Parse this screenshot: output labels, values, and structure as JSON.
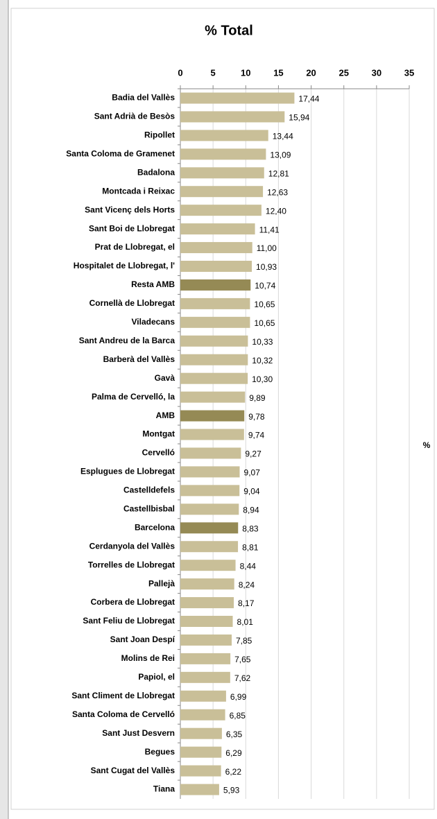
{
  "chart_data": {
    "type": "barh",
    "title": "% Total",
    "categories": [
      "Badia del Vallès",
      "Sant Adrià de Besòs",
      "Ripollet",
      "Santa Coloma de Gramenet",
      "Badalona",
      "Montcada i Reixac",
      "Sant Vicenç dels Horts",
      "Sant Boi de Llobregat",
      "Prat de Llobregat, el",
      "Hospitalet de Llobregat, l'",
      "Resta AMB",
      "Cornellà de Llobregat",
      "Viladecans",
      "Sant Andreu de la Barca",
      "Barberà del Vallès",
      "Gavà",
      "Palma de Cervelló, la",
      "AMB",
      "Montgat",
      "Cervelló",
      "Esplugues de Llobregat",
      "Castelldefels",
      "Castellbisbal",
      "Barcelona",
      "Cerdanyola del Vallès",
      "Torrelles de Llobregat",
      "Pallejà",
      "Corbera de Llobregat",
      "Sant Feliu de Llobregat",
      "Sant Joan Despí",
      "Molins de Rei",
      "Papiol, el",
      "Sant Climent de Llobregat",
      "Santa Coloma de Cervelló",
      "Sant Just Desvern",
      "Begues",
      "Sant Cugat del Vallès",
      "Tiana"
    ],
    "series": [
      {
        "name": "%",
        "color": "#c9bf98",
        "colors": [
          "#c9bf98",
          "#c9bf98",
          "#c9bf98",
          "#c9bf98",
          "#c9bf98",
          "#c9bf98",
          "#c9bf98",
          "#c9bf98",
          "#c9bf98",
          "#c9bf98",
          "#958a55",
          "#c9bf98",
          "#c9bf98",
          "#c9bf98",
          "#c9bf98",
          "#c9bf98",
          "#c9bf98",
          "#958a55",
          "#c9bf98",
          "#c9bf98",
          "#c9bf98",
          "#c9bf98",
          "#c9bf98",
          "#958a55",
          "#c9bf98",
          "#c9bf98",
          "#c9bf98",
          "#c9bf98",
          "#c9bf98",
          "#c9bf98",
          "#c9bf98",
          "#c9bf98",
          "#c9bf98",
          "#c9bf98",
          "#c9bf98",
          "#c9bf98",
          "#c9bf98",
          "#c9bf98"
        ],
        "values": [
          17.44,
          15.94,
          13.44,
          13.09,
          12.81,
          12.63,
          12.4,
          11.41,
          11.0,
          10.93,
          10.74,
          10.65,
          10.65,
          10.33,
          10.32,
          10.3,
          9.89,
          9.78,
          9.74,
          9.27,
          9.07,
          9.04,
          8.94,
          8.83,
          8.81,
          8.44,
          8.24,
          8.17,
          8.01,
          7.85,
          7.65,
          7.62,
          6.99,
          6.85,
          6.35,
          6.29,
          6.22,
          5.93
        ],
        "value_labels": [
          "17,44",
          "15,94",
          "13,44",
          "13,09",
          "12,81",
          "12,63",
          "12,40",
          "11,41",
          "11,00",
          "10,93",
          "10,74",
          "10,65",
          "10,65",
          "10,33",
          "10,32",
          "10,30",
          "9,89",
          "9,78",
          "9,74",
          "9,27",
          "9,07",
          "9,04",
          "8,94",
          "8,83",
          "8,81",
          "8,44",
          "8,24",
          "8,17",
          "8,01",
          "7,85",
          "7,65",
          "7,62",
          "6,99",
          "6,85",
          "6,35",
          "6,29",
          "6,22",
          "5,93"
        ]
      }
    ],
    "xlim": [
      0,
      35
    ],
    "xticks": [
      0,
      5,
      10,
      15,
      20,
      25,
      30,
      35
    ],
    "grid": true,
    "legend": "right"
  }
}
